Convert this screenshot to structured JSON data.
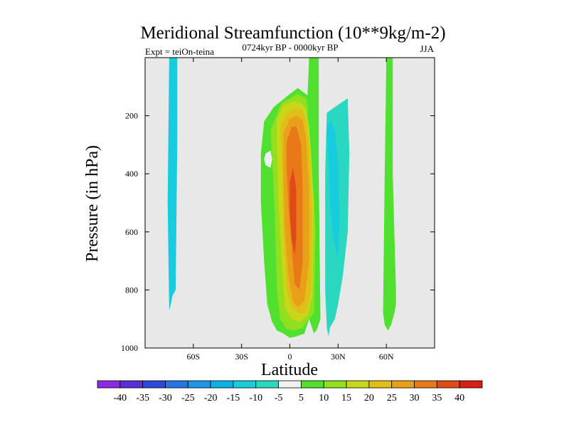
{
  "chart_data": {
    "type": "heatmap",
    "title": "Meridional Streamfunction (10**9kg/m-2)",
    "left_label": "Expt = teiOn-teina",
    "center_label": "0724kyr BP - 0000kyr BP",
    "right_label": "JJA",
    "xlabel": "Latitude",
    "ylabel": "Pressure (in hPa)",
    "xlim": [
      -90,
      90
    ],
    "ylim": [
      1000,
      0
    ],
    "x_ticks": [
      {
        "value": -60,
        "label": "60S"
      },
      {
        "value": -30,
        "label": "30S"
      },
      {
        "value": 0,
        "label": "0"
      },
      {
        "value": 30,
        "label": "30N"
      },
      {
        "value": 60,
        "label": "60N"
      }
    ],
    "y_ticks": [
      {
        "value": 200,
        "label": "200"
      },
      {
        "value": 400,
        "label": "400"
      },
      {
        "value": 600,
        "label": "600"
      },
      {
        "value": 800,
        "label": "800"
      },
      {
        "value": 1000,
        "label": "1000"
      }
    ],
    "background_color": "#e8e8e8",
    "colorbar": {
      "labels": [
        "-40",
        "-35",
        "-30",
        "-25",
        "-20",
        "-15",
        "-10",
        "-5",
        "5",
        "10",
        "15",
        "20",
        "25",
        "30",
        "35",
        "40"
      ],
      "colors": [
        "#8a2be2",
        "#5a30d6",
        "#3048d8",
        "#2874e0",
        "#1e96e6",
        "#10b0e6",
        "#18cce0",
        "#2ad8c0",
        "#f0f0f0",
        "#50e030",
        "#90e020",
        "#c8d818",
        "#e0c018",
        "#e8a018",
        "#e87818",
        "#e04a18",
        "#d82010"
      ]
    },
    "contours": [
      {
        "level": "-10",
        "color": "#18cce0",
        "x": [
          -75,
          -70,
          -70,
          -71,
          -73,
          -74,
          -75,
          -76
        ],
        "y": [
          0,
          0,
          300,
          800,
          820,
          850,
          870,
          500
        ]
      },
      {
        "level": "5",
        "color": "#50e030",
        "x": [
          -16,
          -10,
          0,
          5,
          11,
          12,
          13,
          18,
          18,
          19,
          17,
          15,
          12,
          9,
          4,
          0,
          -4,
          -8,
          -11,
          -14,
          -16,
          -18,
          -18
        ],
        "y": [
          220,
          170,
          125,
          105,
          130,
          0,
          0,
          0,
          400,
          900,
          935,
          950,
          900,
          950,
          960,
          965,
          950,
          940,
          910,
          850,
          700,
          500,
          330
        ]
      },
      {
        "level": "5",
        "color": "#50e030",
        "x": [
          60,
          64,
          64,
          66,
          66,
          65,
          63,
          61,
          59,
          58,
          59
        ],
        "y": [
          0,
          0,
          400,
          800,
          850,
          880,
          920,
          940,
          920,
          880,
          400
        ]
      },
      {
        "level": "-5",
        "color": "#2ad8c0",
        "x": [
          23,
          28,
          36,
          37,
          36,
          33,
          30,
          28,
          25,
          24,
          23,
          22,
          22
        ],
        "y": [
          190,
          170,
          140,
          330,
          600,
          750,
          850,
          900,
          930,
          960,
          930,
          800,
          400
        ]
      },
      {
        "level": "-10",
        "color": "#18cce0",
        "x": [
          23,
          26,
          28,
          30,
          31,
          30,
          27,
          25,
          24,
          23
        ],
        "y": [
          230,
          220,
          250,
          350,
          550,
          700,
          620,
          500,
          350,
          280
        ]
      },
      {
        "level": "5",
        "color": "#f0f0f0",
        "x": [
          -15,
          -12,
          -11,
          -12,
          -15,
          -16
        ],
        "y": [
          330,
          320,
          350,
          380,
          370,
          350
        ]
      },
      {
        "level": "10",
        "color": "#90e020",
        "x": [
          -12,
          -5,
          5,
          10,
          11,
          11,
          13,
          16,
          15,
          12,
          8,
          3,
          -2,
          -6,
          -8,
          -9,
          -10,
          -11
        ],
        "y": [
          250,
          155,
          125,
          140,
          170,
          200,
          300,
          600,
          880,
          900,
          930,
          940,
          935,
          900,
          800,
          600,
          450,
          350
        ]
      },
      {
        "level": "15",
        "color": "#c8d818",
        "x": [
          -8,
          -4,
          2,
          8,
          10,
          12,
          15,
          14,
          11,
          6,
          1,
          -3,
          -5,
          -7,
          -8
        ],
        "y": [
          210,
          165,
          150,
          160,
          180,
          240,
          500,
          820,
          890,
          910,
          900,
          860,
          700,
          500,
          320
        ]
      },
      {
        "level": "20",
        "color": "#e0c018",
        "x": [
          -6,
          -2,
          3,
          8,
          10,
          12,
          14,
          13,
          10,
          5,
          1,
          -2,
          -4,
          -5
        ],
        "y": [
          240,
          190,
          175,
          180,
          210,
          300,
          550,
          800,
          880,
          880,
          860,
          800,
          600,
          400
        ]
      },
      {
        "level": "25",
        "color": "#e8a018",
        "x": [
          -4,
          0,
          4,
          8,
          10,
          12,
          12,
          9,
          5,
          2,
          -1,
          -3,
          -4
        ],
        "y": [
          260,
          210,
          200,
          215,
          270,
          450,
          700,
          840,
          860,
          840,
          750,
          600,
          420
        ]
      },
      {
        "level": "30",
        "color": "#e87818",
        "x": [
          -2,
          1,
          4,
          7,
          8,
          8,
          6,
          3,
          1,
          -1,
          -2
        ],
        "y": [
          290,
          240,
          235,
          300,
          450,
          700,
          800,
          780,
          650,
          500,
          380
        ]
      },
      {
        "level": "35",
        "color": "#e04a18",
        "x": [
          0,
          2,
          4,
          4,
          3,
          1,
          0
        ],
        "y": [
          430,
          380,
          450,
          620,
          680,
          620,
          530
        ]
      }
    ]
  }
}
